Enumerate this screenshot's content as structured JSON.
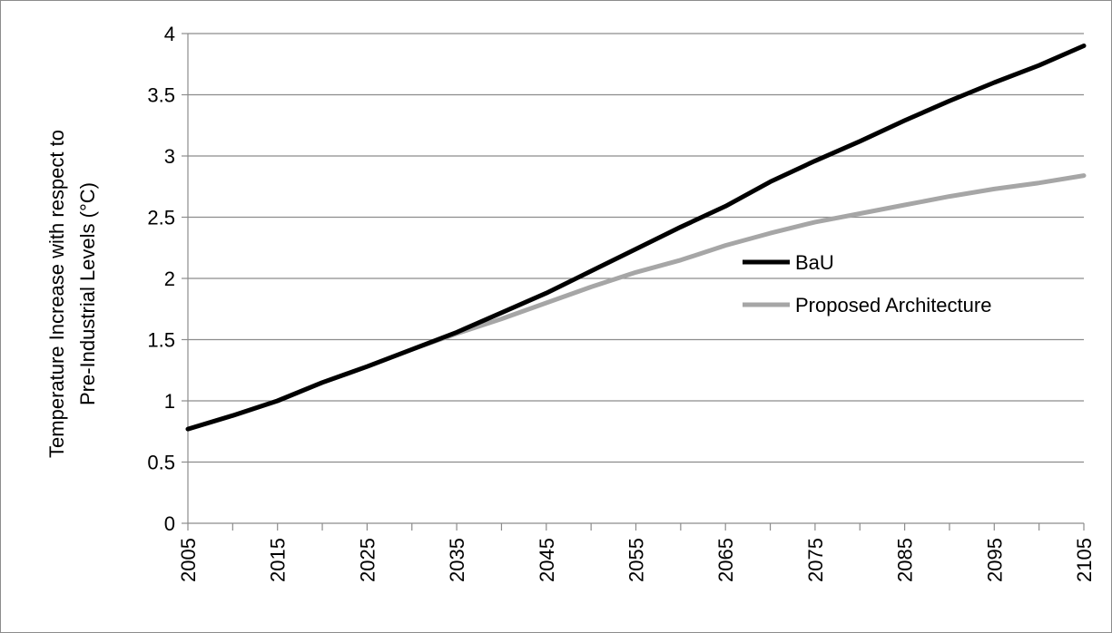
{
  "chart_data": {
    "type": "line",
    "ylabel_line1": "Temperature Increase with respect to",
    "ylabel_line2": "Pre-Industrial Levels (°C)",
    "xlabel": "",
    "ylim": [
      0,
      4
    ],
    "y_ticks": [
      "0",
      "0.5",
      "1",
      "1.5",
      "2",
      "2.5",
      "3",
      "3.5",
      "4"
    ],
    "x_min": 2005,
    "x_max": 2105,
    "x_ticks": [
      "2005",
      "2015",
      "2025",
      "2035",
      "2045",
      "2055",
      "2065",
      "2075",
      "2085",
      "2095",
      "2105"
    ],
    "grid": true,
    "legend_position": "center-right",
    "series": [
      {
        "name": "BaU",
        "color": "#000000",
        "x": [
          2005,
          2010,
          2015,
          2020,
          2025,
          2030,
          2035,
          2040,
          2045,
          2050,
          2055,
          2060,
          2065,
          2070,
          2075,
          2080,
          2085,
          2090,
          2095,
          2100,
          2105
        ],
        "y": [
          0.77,
          0.88,
          1.0,
          1.15,
          1.28,
          1.42,
          1.56,
          1.72,
          1.88,
          2.06,
          2.24,
          2.42,
          2.59,
          2.79,
          2.96,
          3.12,
          3.29,
          3.45,
          3.6,
          3.74,
          3.9
        ]
      },
      {
        "name": "Proposed Architecture",
        "color": "#a6a6a6",
        "x": [
          2005,
          2010,
          2015,
          2020,
          2025,
          2030,
          2035,
          2040,
          2045,
          2050,
          2055,
          2060,
          2065,
          2070,
          2075,
          2080,
          2085,
          2090,
          2095,
          2100,
          2105
        ],
        "y": [
          0.77,
          0.88,
          1.0,
          1.15,
          1.28,
          1.42,
          1.55,
          1.67,
          1.8,
          1.93,
          2.05,
          2.15,
          2.27,
          2.37,
          2.46,
          2.53,
          2.6,
          2.67,
          2.73,
          2.78,
          2.84
        ]
      }
    ]
  }
}
